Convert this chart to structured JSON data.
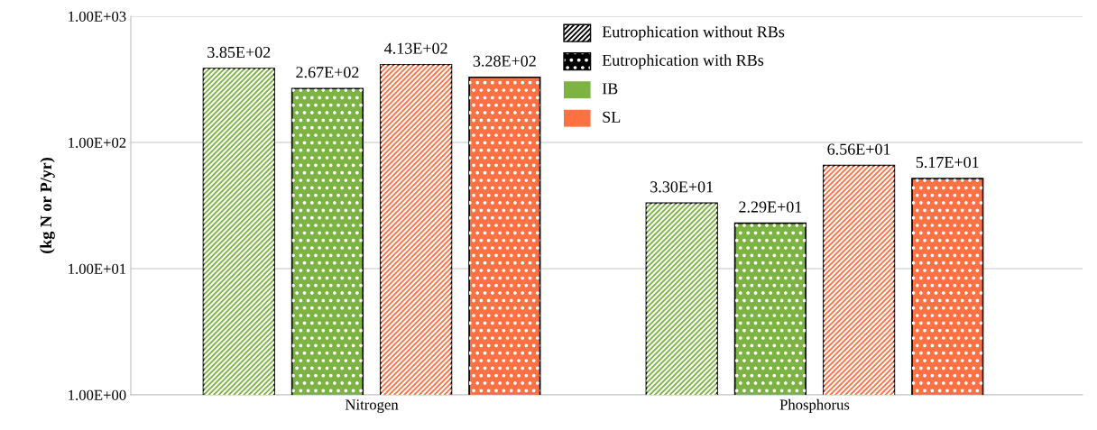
{
  "chart_data": {
    "type": "bar",
    "ylabel": "(kg N or P/yr)",
    "categories": [
      "Nitrogen",
      "Phosphorus"
    ],
    "series": [
      {
        "color": "#7cb342",
        "values": [
          385,
          33.0
        ],
        "value_labels": [
          "3.85E+02",
          "3.30E+01"
        ]
      },
      {
        "color": "#7cb342",
        "values": [
          267,
          22.9
        ],
        "value_labels": [
          "2.67E+02",
          "2.29E+01"
        ]
      },
      {
        "color": "#ff7043",
        "values": [
          413,
          65.6
        ],
        "value_labels": [
          "4.13E+02",
          "6.56E+01"
        ]
      },
      {
        "color": "#ff7043",
        "values": [
          328,
          51.7
        ],
        "value_labels": [
          "3.28E+02",
          "5.17E+01"
        ]
      }
    ],
    "annotations": [
      "Eutrophication without RBs",
      "Eutrophication with RBs",
      "IB",
      "SL"
    ],
    "log": true,
    "ylim": [
      1,
      1000
    ],
    "yticks": [
      {
        "value": 1,
        "label": "1.00E+00"
      },
      {
        "value": 10,
        "label": "1.00E+01"
      },
      {
        "value": 100,
        "label": "1.00E+02"
      },
      {
        "value": 1000,
        "label": "1.00E+03"
      }
    ],
    "grid": "y"
  }
}
